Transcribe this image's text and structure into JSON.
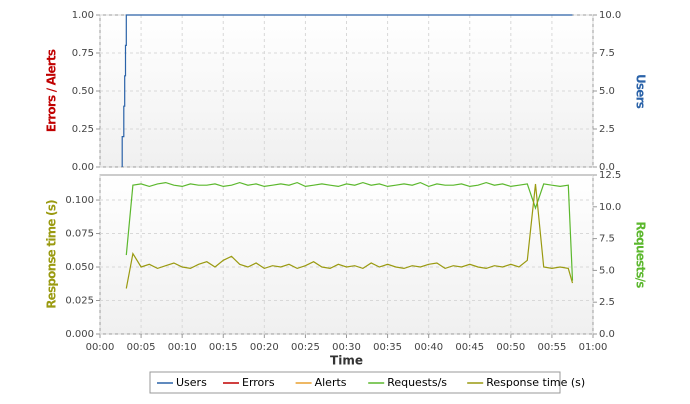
{
  "chart_data": [
    {
      "type": "line",
      "ylabel": "Errors / Alerts",
      "y2label": "Users",
      "xlim": [
        0,
        60
      ],
      "xticks": [
        0,
        5,
        10,
        15,
        20,
        25,
        30,
        35,
        40,
        45,
        50,
        55,
        60
      ],
      "ylim": [
        0,
        1
      ],
      "yticks": [
        {
          "value": 0,
          "label": "0.00"
        },
        {
          "value": 0.25,
          "label": "0.25"
        },
        {
          "value": 0.5,
          "label": "0.50"
        },
        {
          "value": 0.75,
          "label": "0.75"
        },
        {
          "value": 1,
          "label": "1.00"
        }
      ],
      "y2lim": [
        0,
        10
      ],
      "y2ticks": [
        {
          "value": 0,
          "label": "0.0"
        },
        2.5,
        {
          "value": 5,
          "label": "5.0"
        },
        7.5,
        {
          "value": 10,
          "label": "10.0"
        }
      ],
      "grid": true,
      "series": [
        {
          "name": "Users",
          "color": "#2a62a8",
          "axis": "y2",
          "x": [
            2.7,
            2.7,
            2.9,
            2.9,
            3.0,
            3.0,
            3.1,
            3.1,
            3.2,
            3.2,
            57.5
          ],
          "values": [
            0,
            2,
            2,
            4,
            4,
            6,
            6,
            8,
            8,
            10,
            10
          ]
        },
        {
          "name": "Errors",
          "color": "#c00000",
          "x": [],
          "values": []
        },
        {
          "name": "Alerts",
          "color": "#e8a030",
          "x": [],
          "values": []
        }
      ]
    },
    {
      "type": "line",
      "xlabel": "Time",
      "ylabel": "Response time (s)",
      "y2label": "Requests/s",
      "xlim": [
        0,
        60
      ],
      "xticks": [
        {
          "value": 0,
          "label": "00:00"
        },
        {
          "value": 5,
          "label": "00:05"
        },
        {
          "value": 10,
          "label": "00:10"
        },
        {
          "value": 15,
          "label": "00:15"
        },
        {
          "value": 20,
          "label": "00:20"
        },
        {
          "value": 25,
          "label": "00:25"
        },
        {
          "value": 30,
          "label": "00:30"
        },
        {
          "value": 35,
          "label": "00:35"
        },
        {
          "value": 40,
          "label": "00:40"
        },
        {
          "value": 45,
          "label": "00:45"
        },
        {
          "value": 50,
          "label": "00:50"
        },
        {
          "value": 55,
          "label": "00:55"
        },
        {
          "value": 60,
          "label": "01:00"
        }
      ],
      "ylim": [
        0,
        0.1187
      ],
      "yticks": [
        {
          "value": 0,
          "label": "0.000"
        },
        0.025,
        {
          "value": 0.05,
          "label": "0.050"
        },
        0.075,
        {
          "value": 0.1,
          "label": "0.100"
        }
      ],
      "y2lim": [
        0,
        12.5
      ],
      "y2ticks": [
        {
          "value": 0,
          "label": "0.0"
        },
        2.5,
        {
          "value": 5,
          "label": "5.0"
        },
        7.5,
        {
          "value": 10,
          "label": "10.0"
        },
        12.5
      ],
      "grid": true,
      "x": [
        3.2,
        4,
        5,
        6,
        7,
        8,
        9,
        10,
        11,
        12,
        13,
        14,
        15,
        16,
        17,
        18,
        19,
        20,
        21,
        22,
        23,
        24,
        25,
        26,
        27,
        28,
        29,
        30,
        31,
        32,
        33,
        34,
        35,
        36,
        37,
        38,
        39,
        40,
        41,
        42,
        43,
        44,
        45,
        46,
        47,
        48,
        49,
        50,
        51,
        52,
        53,
        54,
        55,
        56,
        57,
        57.5
      ],
      "series": [
        {
          "name": "Requests/s",
          "color": "#5cb82e",
          "axis": "y2",
          "values": [
            6.2,
            11.7,
            11.8,
            11.6,
            11.8,
            11.9,
            11.7,
            11.6,
            11.8,
            11.7,
            11.7,
            11.8,
            11.6,
            11.7,
            11.9,
            11.7,
            11.8,
            11.6,
            11.7,
            11.8,
            11.7,
            11.9,
            11.6,
            11.7,
            11.8,
            11.7,
            11.6,
            11.8,
            11.7,
            11.9,
            11.7,
            11.8,
            11.6,
            11.7,
            11.8,
            11.7,
            11.9,
            11.6,
            11.8,
            11.7,
            11.7,
            11.8,
            11.6,
            11.7,
            11.9,
            11.7,
            11.8,
            11.6,
            11.7,
            11.8,
            9.9,
            11.8,
            11.7,
            11.6,
            11.7,
            4.2
          ]
        },
        {
          "name": "Response time (s)",
          "color": "#9a9a10",
          "values": [
            0.034,
            0.06,
            0.05,
            0.052,
            0.049,
            0.051,
            0.053,
            0.05,
            0.049,
            0.052,
            0.054,
            0.05,
            0.055,
            0.058,
            0.052,
            0.05,
            0.053,
            0.049,
            0.051,
            0.05,
            0.052,
            0.049,
            0.051,
            0.054,
            0.05,
            0.049,
            0.052,
            0.05,
            0.051,
            0.049,
            0.053,
            0.05,
            0.052,
            0.05,
            0.049,
            0.051,
            0.05,
            0.052,
            0.053,
            0.049,
            0.051,
            0.05,
            0.052,
            0.05,
            0.049,
            0.051,
            0.05,
            0.052,
            0.05,
            0.055,
            0.112,
            0.05,
            0.049,
            0.05,
            0.049,
            0.038
          ]
        }
      ]
    }
  ]
}
